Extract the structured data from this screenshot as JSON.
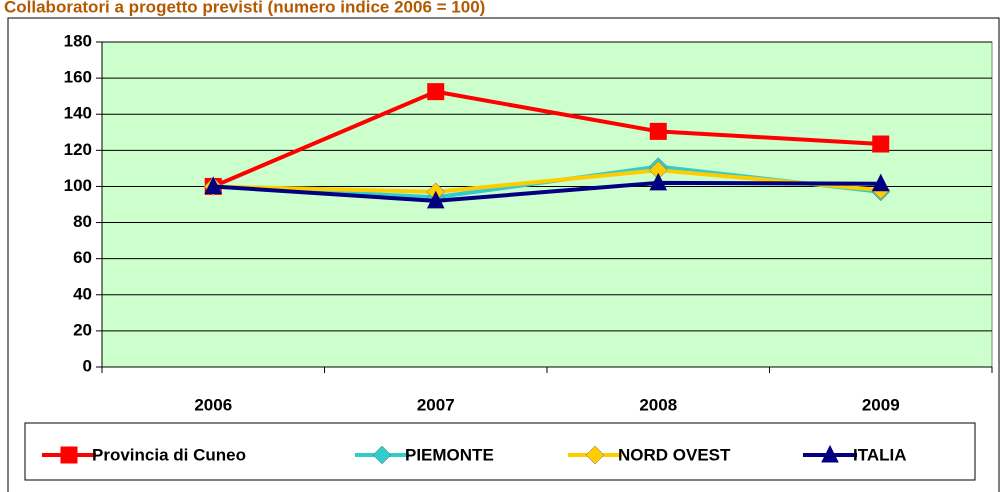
{
  "chart_data": {
    "type": "line",
    "title": "Collaboratori a progetto previsti (numero indice 2006 = 100)",
    "categories": [
      "2006",
      "2007",
      "2008",
      "2009"
    ],
    "series": [
      {
        "name": "Provincia di Cuneo",
        "color": "#ff0000",
        "marker": "square",
        "values": [
          100,
          152.5,
          130.5,
          123.5
        ]
      },
      {
        "name": "PIEMONTE",
        "color": "#33cccc",
        "marker": "diamond",
        "values": [
          100,
          94,
          111,
          97
        ]
      },
      {
        "name": "NORD OVEST",
        "color": "#ffcc00",
        "marker": "diamond",
        "values": [
          100,
          97,
          109,
          98
        ]
      },
      {
        "name": "ITALIA",
        "color": "#000080",
        "marker": "triangle",
        "values": [
          100,
          92,
          102,
          101.5
        ]
      }
    ],
    "ylim": [
      0,
      180
    ],
    "yticks": [
      0,
      20,
      40,
      60,
      80,
      100,
      120,
      140,
      160,
      180
    ],
    "grid": true,
    "legend": "bottom",
    "plot_background": "#ccffcc"
  }
}
